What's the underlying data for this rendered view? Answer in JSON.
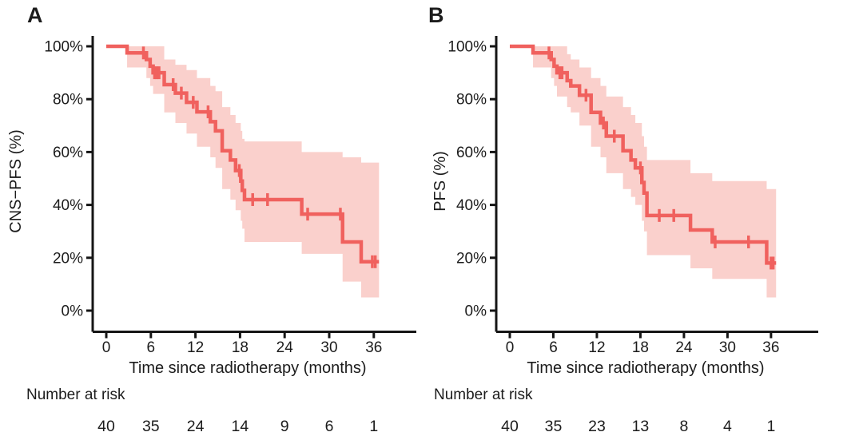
{
  "colors": {
    "curve": "#f0615e",
    "confidence_band": "#fad0cc",
    "axis": "#151515",
    "text": "#1c1c1c",
    "background": "#ffffff"
  },
  "panels": [
    {
      "letter": "A",
      "y_axis_title": "CNS−PFS (%)",
      "x_axis_title": "Time since radiotherapy (months)",
      "number_at_risk_label": "Number at risk"
    },
    {
      "letter": "B",
      "y_axis_title": "PFS (%)",
      "x_axis_title": "Time since radiotherapy (months)",
      "number_at_risk_label": "Number at risk"
    }
  ],
  "chart_data": [
    {
      "type": "line",
      "chart_kind": "kaplan_meier_step_curve_with_ci",
      "title": "",
      "xlabel": "Time since radiotherapy (months)",
      "ylabel": "CNS−PFS (%)",
      "xlim": [
        0,
        38
      ],
      "ylim": [
        0,
        100
      ],
      "x_ticks": [
        0,
        6,
        12,
        18,
        24,
        30,
        36
      ],
      "y_ticks": [
        0,
        20,
        40,
        60,
        80,
        100
      ],
      "y_tick_labels": [
        "0%",
        "20%",
        "40%",
        "60%",
        "80%",
        "100%"
      ],
      "grid": false,
      "legend": false,
      "series": [
        {
          "name": "CNS-PFS",
          "steps_t_s_lo_up": [
            [
              0.0,
              100,
              100,
              100
            ],
            [
              2.8,
              97.5,
              92,
              100
            ],
            [
              5.4,
              95,
              88,
              100
            ],
            [
              5.9,
              92.5,
              85,
              100
            ],
            [
              6.3,
              90,
              82,
              100
            ],
            [
              7.8,
              85.5,
              75,
              95
            ],
            [
              9.3,
              82.3,
              71,
              93
            ],
            [
              10.8,
              78.8,
              67,
              91
            ],
            [
              12.2,
              75.2,
              62,
              88
            ],
            [
              14.0,
              71.5,
              58,
              85
            ],
            [
              14.7,
              68,
              54,
              83
            ],
            [
              15.6,
              60.5,
              46,
              77
            ],
            [
              16.7,
              57,
              42,
              74
            ],
            [
              17.4,
              53,
              38,
              71
            ],
            [
              18.1,
              49,
              34,
              68
            ],
            [
              18.3,
              45.5,
              31,
              65
            ],
            [
              18.6,
              42,
              26,
              64
            ],
            [
              26.3,
              36.5,
              21.5,
              60
            ],
            [
              31.8,
              26,
              11,
              58
            ],
            [
              34.3,
              18.5,
              5,
              56
            ]
          ],
          "end_time": 36.7,
          "censor_marks_t_s": [
            [
              5.0,
              97.5
            ],
            [
              6.5,
              90
            ],
            [
              6.8,
              90
            ],
            [
              7.1,
              90
            ],
            [
              9.0,
              85.5
            ],
            [
              10.1,
              82.3
            ],
            [
              11.7,
              78.8
            ],
            [
              13.7,
              75.2
            ],
            [
              17.9,
              53
            ],
            [
              19.7,
              42
            ],
            [
              21.7,
              42
            ],
            [
              27.1,
              36.5
            ],
            [
              31.5,
              36.5
            ],
            [
              35.8,
              18.5
            ],
            [
              36.2,
              18.5
            ]
          ]
        }
      ],
      "number_at_risk": {
        "times": [
          0,
          6,
          12,
          18,
          24,
          30,
          36
        ],
        "counts": [
          40,
          35,
          24,
          14,
          9,
          6,
          1
        ]
      }
    },
    {
      "type": "line",
      "chart_kind": "kaplan_meier_step_curve_with_ci",
      "title": "",
      "xlabel": "Time since radiotherapy (months)",
      "ylabel": "PFS (%)",
      "xlim": [
        0,
        38
      ],
      "ylim": [
        0,
        100
      ],
      "x_ticks": [
        0,
        6,
        12,
        18,
        24,
        30,
        36
      ],
      "y_ticks": [
        0,
        20,
        40,
        60,
        80,
        100
      ],
      "y_tick_labels": [
        "0%",
        "20%",
        "40%",
        "60%",
        "80%",
        "100%"
      ],
      "grid": false,
      "legend": false,
      "series": [
        {
          "name": "PFS",
          "steps_t_s_lo_up": [
            [
              0.0,
              100,
              100,
              100
            ],
            [
              3.2,
              97.5,
              92,
              100
            ],
            [
              5.7,
              95,
              88,
              100
            ],
            [
              6.1,
              92.5,
              85,
              100
            ],
            [
              6.5,
              90,
              81,
              100
            ],
            [
              7.9,
              87,
              77,
              97
            ],
            [
              8.4,
              85,
              75,
              95
            ],
            [
              9.6,
              81.5,
              70,
              92
            ],
            [
              11.2,
              75,
              62,
              88
            ],
            [
              12.5,
              71,
              58,
              85
            ],
            [
              13.3,
              66,
              52,
              81
            ],
            [
              15.6,
              60.5,
              46,
              77
            ],
            [
              16.7,
              57,
              43,
              74
            ],
            [
              17.3,
              54,
              40,
              71
            ],
            [
              18.2,
              48.5,
              34,
              66
            ],
            [
              18.5,
              44.5,
              30,
              62
            ],
            [
              18.9,
              36,
              21,
              57
            ],
            [
              24.9,
              30.5,
              16,
              52
            ],
            [
              27.9,
              26,
              12,
              49
            ],
            [
              35.4,
              18,
              5,
              46
            ]
          ],
          "end_time": 36.7,
          "censor_marks_t_s": [
            [
              5.4,
              97.5
            ],
            [
              6.9,
              90
            ],
            [
              7.2,
              90
            ],
            [
              10.5,
              81.5
            ],
            [
              12.9,
              71
            ],
            [
              14.4,
              66
            ],
            [
              18.0,
              54
            ],
            [
              20.6,
              36
            ],
            [
              22.6,
              36
            ],
            [
              28.3,
              26
            ],
            [
              32.9,
              26
            ],
            [
              36.0,
              18
            ],
            [
              36.3,
              18
            ]
          ]
        }
      ],
      "number_at_risk": {
        "times": [
          0,
          6,
          12,
          18,
          24,
          30,
          36
        ],
        "counts": [
          40,
          35,
          23,
          13,
          8,
          4,
          1
        ]
      }
    }
  ]
}
